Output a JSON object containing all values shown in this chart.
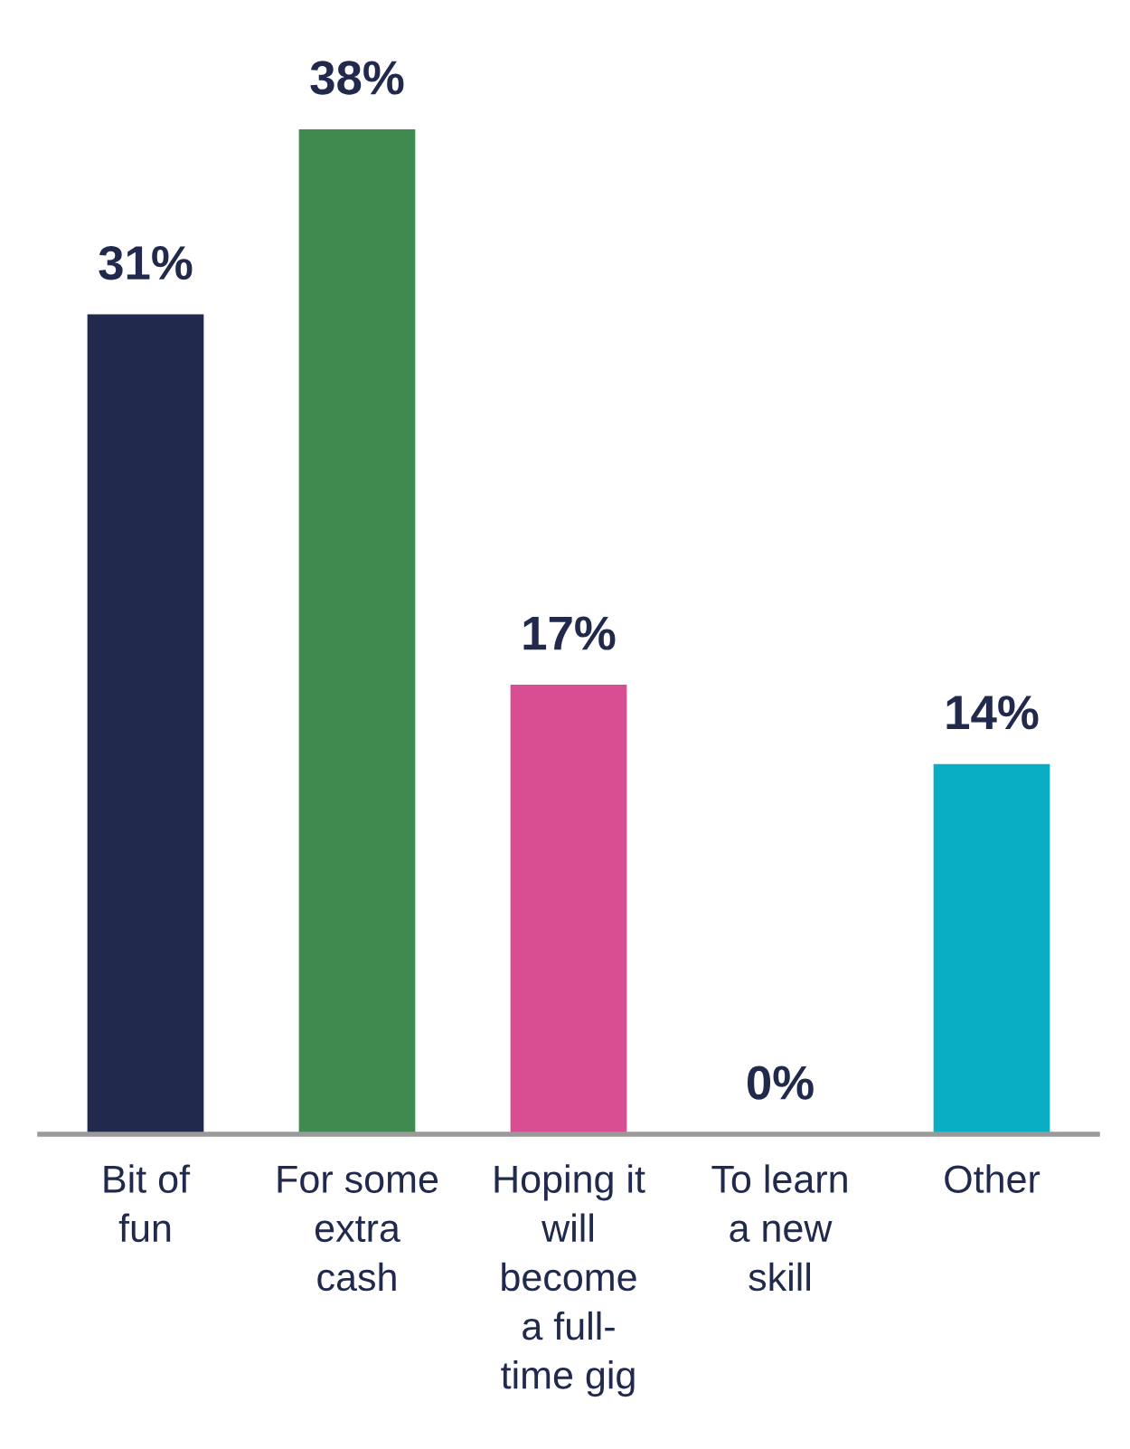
{
  "chart_data": {
    "type": "bar",
    "categories": [
      "Bit of\nfun",
      "For some\nextra\ncash",
      "Hoping it\nwill\nbecome\na full-\ntime gig",
      "To learn\na new\nskill",
      "Other"
    ],
    "values": [
      31,
      38,
      17,
      0,
      14
    ],
    "colors": [
      "#212a4c",
      "#3e8a4f",
      "#d94d92",
      "#7b3fa0",
      "#0aaec4"
    ],
    "value_labels": [
      "31%",
      "38%",
      "17%",
      "0%",
      "14%"
    ],
    "grid": false,
    "legend": false
  }
}
